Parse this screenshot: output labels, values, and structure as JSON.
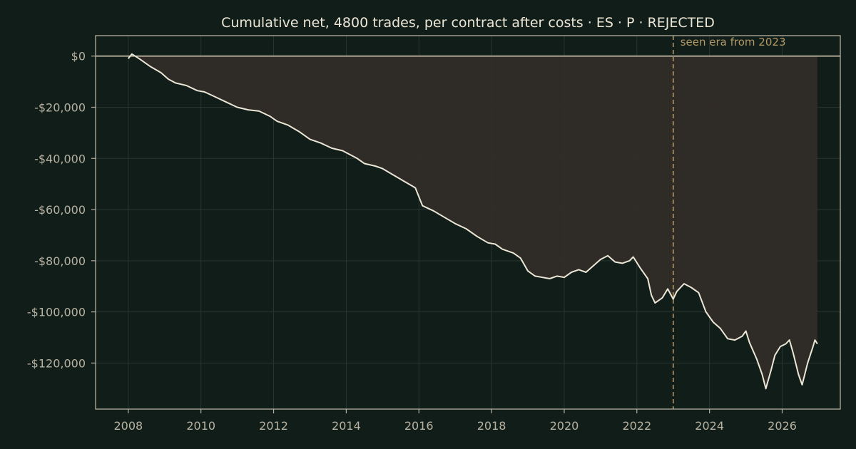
{
  "chart_data": {
    "type": "line",
    "title": "Cumulative net, 4800 trades, per contract after costs  ·  ES · P · REJECTED",
    "xlabel": "",
    "ylabel": "",
    "x_ticks": [
      "2008",
      "2010",
      "2012",
      "2014",
      "2016",
      "2018",
      "2020",
      "2022",
      "2024",
      "2026"
    ],
    "x_tick_values": [
      2008,
      2010,
      2012,
      2014,
      2016,
      2018,
      2020,
      2022,
      2024,
      2026
    ],
    "y_ticks": [
      "$0",
      "-$20,000",
      "-$40,000",
      "-$60,000",
      "-$80,000",
      "-$100,000",
      "-$120,000"
    ],
    "y_tick_values": [
      0,
      -20000,
      -40000,
      -60000,
      -80000,
      -100000,
      -120000
    ],
    "xlim": [
      2007.1,
      2027.6
    ],
    "ylim": [
      -138000,
      8000
    ],
    "grid": true,
    "baseline": 0,
    "vline": {
      "x": 2023.0,
      "label": "seen era from 2023"
    },
    "series": [
      {
        "points": [
          [
            2008.0,
            -1000
          ],
          [
            2008.1,
            800
          ],
          [
            2008.3,
            -1000
          ],
          [
            2008.6,
            -4000
          ],
          [
            2008.9,
            -6500
          ],
          [
            2009.1,
            -9000
          ],
          [
            2009.3,
            -10500
          ],
          [
            2009.6,
            -11500
          ],
          [
            2009.9,
            -13500
          ],
          [
            2010.1,
            -14000
          ],
          [
            2010.4,
            -16000
          ],
          [
            2010.7,
            -18000
          ],
          [
            2011.0,
            -20000
          ],
          [
            2011.3,
            -21000
          ],
          [
            2011.6,
            -21500
          ],
          [
            2011.9,
            -23500
          ],
          [
            2012.1,
            -25500
          ],
          [
            2012.4,
            -27000
          ],
          [
            2012.7,
            -29500
          ],
          [
            2013.0,
            -32500
          ],
          [
            2013.3,
            -34000
          ],
          [
            2013.6,
            -36000
          ],
          [
            2013.9,
            -37000
          ],
          [
            2014.1,
            -38500
          ],
          [
            2014.3,
            -40000
          ],
          [
            2014.5,
            -42000
          ],
          [
            2014.8,
            -43000
          ],
          [
            2015.0,
            -44000
          ],
          [
            2015.3,
            -46500
          ],
          [
            2015.6,
            -49000
          ],
          [
            2015.9,
            -51500
          ],
          [
            2016.1,
            -58500
          ],
          [
            2016.4,
            -60500
          ],
          [
            2016.7,
            -63000
          ],
          [
            2017.0,
            -65500
          ],
          [
            2017.3,
            -67500
          ],
          [
            2017.6,
            -70500
          ],
          [
            2017.9,
            -73000
          ],
          [
            2018.1,
            -73500
          ],
          [
            2018.3,
            -75500
          ],
          [
            2018.6,
            -77000
          ],
          [
            2018.8,
            -79000
          ],
          [
            2019.0,
            -84000
          ],
          [
            2019.2,
            -86000
          ],
          [
            2019.4,
            -86500
          ],
          [
            2019.6,
            -87000
          ],
          [
            2019.8,
            -86000
          ],
          [
            2020.0,
            -86500
          ],
          [
            2020.2,
            -84500
          ],
          [
            2020.4,
            -83500
          ],
          [
            2020.6,
            -84500
          ],
          [
            2020.8,
            -82000
          ],
          [
            2021.0,
            -79500
          ],
          [
            2021.2,
            -78000
          ],
          [
            2021.4,
            -80500
          ],
          [
            2021.6,
            -81000
          ],
          [
            2021.8,
            -80000
          ],
          [
            2021.9,
            -78500
          ],
          [
            2022.1,
            -83000
          ],
          [
            2022.3,
            -87000
          ],
          [
            2022.4,
            -93500
          ],
          [
            2022.5,
            -96500
          ],
          [
            2022.7,
            -94500
          ],
          [
            2022.85,
            -91000
          ],
          [
            2023.0,
            -95000
          ],
          [
            2023.1,
            -92000
          ],
          [
            2023.3,
            -89000
          ],
          [
            2023.5,
            -90500
          ],
          [
            2023.7,
            -92500
          ],
          [
            2023.9,
            -100000
          ],
          [
            2024.1,
            -104000
          ],
          [
            2024.3,
            -106500
          ],
          [
            2024.5,
            -110500
          ],
          [
            2024.7,
            -111000
          ],
          [
            2024.9,
            -109500
          ],
          [
            2025.0,
            -107500
          ],
          [
            2025.1,
            -112000
          ],
          [
            2025.3,
            -118500
          ],
          [
            2025.45,
            -124500
          ],
          [
            2025.55,
            -130000
          ],
          [
            2025.7,
            -122500
          ],
          [
            2025.8,
            -117000
          ],
          [
            2025.95,
            -113500
          ],
          [
            2026.1,
            -112500
          ],
          [
            2026.2,
            -111000
          ],
          [
            2026.3,
            -116000
          ],
          [
            2026.45,
            -124500
          ],
          [
            2026.55,
            -128500
          ],
          [
            2026.7,
            -120000
          ],
          [
            2026.85,
            -113500
          ],
          [
            2026.9,
            -111000
          ],
          [
            2026.97,
            -112500
          ]
        ]
      }
    ],
    "colors": {
      "background": "#101d18",
      "line": "#ece6d6",
      "drawdown_fill": "#322c27",
      "axis": "#b5b09f",
      "grid": "#2a3530",
      "zero_line": "#cfc7b3",
      "vline": "#c2a46e"
    }
  }
}
